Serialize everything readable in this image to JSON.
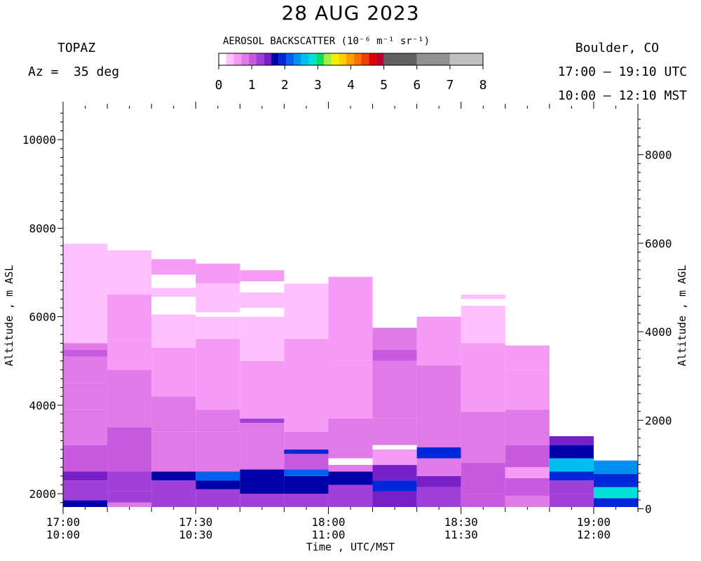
{
  "header": {
    "title": "28 AUG 2023",
    "instrument": "TOPAZ",
    "azimuth": "Az =  35 deg",
    "location": "Boulder, CO",
    "utc_range": "17:00 – 19:10 UTC",
    "mst_range": "10:00 – 12:10 MST"
  },
  "colorbar": {
    "title": "AEROSOL BACKSCATTER (10⁻⁶ m⁻¹ sr⁻¹)",
    "ticks": [
      "0",
      "1",
      "2",
      "3",
      "4",
      "5",
      "6",
      "7",
      "8"
    ],
    "colors": [
      "#ffffff",
      "#ffc0ff",
      "#f59af5",
      "#e07ae8",
      "#c85ae0",
      "#a040d8",
      "#7820c8",
      "#0000a8",
      "#0028d8",
      "#0060f0",
      "#0090f0",
      "#00c0f0",
      "#00e0d8",
      "#00e060",
      "#a0f040",
      "#f0f000",
      "#ffd000",
      "#ffa000",
      "#ff7000",
      "#f04000",
      "#e00000",
      "#b80030",
      "#606060",
      "#909090",
      "#c0c0c0"
    ]
  },
  "chart_data": {
    "type": "heatmap",
    "title": "28 AUG 2023",
    "xlabel": "Time , UTC/MST",
    "ylabel_left": "Altitude , m ASL",
    "ylabel_right": "Altitude , m AGL",
    "ylim_asl": [
      1700,
      10700
    ],
    "yticks_asl": [
      "2000",
      "4000",
      "6000",
      "8000",
      "10000"
    ],
    "yticks_agl": [
      "0",
      "2000",
      "4000",
      "6000",
      "8000"
    ],
    "agl_offset_m": 1660,
    "xlim_minutes": [
      0,
      130
    ],
    "xticks": [
      {
        "utc": "17:00",
        "mst": "10:00"
      },
      {
        "utc": "17:30",
        "mst": "10:30"
      },
      {
        "utc": "18:00",
        "mst": "11:00"
      },
      {
        "utc": "18:30",
        "mst": "11:30"
      },
      {
        "utc": "19:00",
        "mst": "12:00"
      }
    ],
    "columns": [
      {
        "start": 0,
        "end": 10,
        "segments": [
          [
            1700,
            1850,
            2.4
          ],
          [
            1850,
            2300,
            1.7
          ],
          [
            2300,
            2500,
            2.1
          ],
          [
            2500,
            3100,
            1.3
          ],
          [
            3100,
            3900,
            1.1
          ],
          [
            3900,
            4500,
            0.95
          ],
          [
            4500,
            4900,
            0.9
          ],
          [
            4900,
            5100,
            0.85
          ],
          [
            5100,
            5250,
            1.45
          ],
          [
            5250,
            5400,
            0.9
          ],
          [
            5400,
            6200,
            0.35
          ],
          [
            6200,
            7650,
            0.3
          ]
        ]
      },
      {
        "start": 10,
        "end": 20,
        "segments": [
          [
            1700,
            1800,
            0.9
          ],
          [
            1800,
            2050,
            1.65
          ],
          [
            2050,
            2500,
            1.8
          ],
          [
            2500,
            3500,
            1.2
          ],
          [
            3500,
            4100,
            1.05
          ],
          [
            4100,
            4800,
            0.85
          ],
          [
            4800,
            5500,
            0.75
          ],
          [
            5500,
            6500,
            0.5
          ],
          [
            6500,
            7500,
            0.4
          ]
        ]
      },
      {
        "start": 20,
        "end": 30,
        "segments": [
          [
            1700,
            2300,
            1.6
          ],
          [
            2300,
            2500,
            2.3
          ],
          [
            2500,
            3400,
            1.1
          ],
          [
            3400,
            4200,
            1.0
          ],
          [
            4200,
            5300,
            0.8
          ],
          [
            5300,
            6050,
            0.4
          ],
          [
            6050,
            6450,
            0.0
          ],
          [
            6450,
            6650,
            0.3
          ],
          [
            6650,
            6950,
            0.0
          ],
          [
            6950,
            7300,
            0.6
          ]
        ]
      },
      {
        "start": 30,
        "end": 40,
        "segments": [
          [
            1700,
            2100,
            1.6
          ],
          [
            2100,
            2300,
            2.3
          ],
          [
            2300,
            2500,
            3.1
          ],
          [
            2500,
            3400,
            1.1
          ],
          [
            3400,
            3900,
            1.1
          ],
          [
            3900,
            5500,
            0.75
          ],
          [
            5500,
            6000,
            0.3
          ],
          [
            6000,
            6100,
            0.0
          ],
          [
            6100,
            6750,
            0.3
          ],
          [
            6750,
            7200,
            0.55
          ]
        ]
      },
      {
        "start": 40,
        "end": 50,
        "segments": [
          [
            1700,
            2000,
            1.6
          ],
          [
            2000,
            2550,
            2.2
          ],
          [
            2550,
            3600,
            1.1
          ],
          [
            3600,
            3700,
            1.5
          ],
          [
            3700,
            5000,
            0.8
          ],
          [
            5000,
            6000,
            0.45
          ],
          [
            6000,
            6200,
            0.0
          ],
          [
            6200,
            6550,
            0.3
          ],
          [
            6550,
            6800,
            0.0
          ],
          [
            6800,
            7050,
            0.5
          ]
        ]
      },
      {
        "start": 50,
        "end": 60,
        "segments": [
          [
            1700,
            2000,
            1.7
          ],
          [
            2000,
            2400,
            2.2
          ],
          [
            2400,
            2550,
            3.1
          ],
          [
            2550,
            2900,
            1.4
          ],
          [
            2900,
            3000,
            2.8
          ],
          [
            3000,
            3400,
            1.15
          ],
          [
            3400,
            5500,
            0.8
          ],
          [
            5500,
            6750,
            0.45
          ]
        ]
      },
      {
        "start": 60,
        "end": 70,
        "segments": [
          [
            1700,
            2200,
            1.8
          ],
          [
            2200,
            2500,
            2.4
          ],
          [
            2500,
            2650,
            1.0
          ],
          [
            2650,
            2800,
            0.0
          ],
          [
            2800,
            3700,
            1.1
          ],
          [
            3700,
            5000,
            0.75
          ],
          [
            5000,
            6900,
            0.5
          ]
        ]
      },
      {
        "start": 70,
        "end": 80,
        "segments": [
          [
            1700,
            2050,
            2.1
          ],
          [
            2050,
            2300,
            2.7
          ],
          [
            2300,
            2650,
            1.9
          ],
          [
            2650,
            3000,
            0.7
          ],
          [
            3000,
            3100,
            0.0
          ],
          [
            3100,
            3700,
            1.1
          ],
          [
            3700,
            5000,
            1.1
          ],
          [
            5000,
            5250,
            1.4
          ],
          [
            5250,
            5750,
            1.0
          ]
        ]
      },
      {
        "start": 80,
        "end": 90,
        "segments": [
          [
            1700,
            2150,
            1.5
          ],
          [
            2150,
            2400,
            2.0
          ],
          [
            2400,
            2800,
            1.1
          ],
          [
            2800,
            3050,
            2.5
          ],
          [
            3050,
            3800,
            1.1
          ],
          [
            3800,
            4900,
            0.95
          ],
          [
            4900,
            6000,
            0.65
          ]
        ]
      },
      {
        "start": 90,
        "end": 100,
        "segments": [
          [
            1700,
            2000,
            1.3
          ],
          [
            2000,
            2700,
            1.4
          ],
          [
            2700,
            3000,
            1.1
          ],
          [
            3000,
            3850,
            1.0
          ],
          [
            3850,
            5400,
            0.75
          ],
          [
            5400,
            6250,
            0.4
          ],
          [
            6250,
            6400,
            0.0
          ],
          [
            6400,
            6500,
            0.2
          ]
        ]
      },
      {
        "start": 100,
        "end": 110,
        "segments": [
          [
            1700,
            1950,
            1.1
          ],
          [
            1950,
            2350,
            1.3
          ],
          [
            2350,
            2600,
            0.6
          ],
          [
            2600,
            3100,
            1.3
          ],
          [
            3100,
            3900,
            0.9
          ],
          [
            3900,
            4800,
            0.7
          ],
          [
            4800,
            5350,
            0.55
          ]
        ]
      },
      {
        "start": 110,
        "end": 120,
        "segments": [
          [
            1700,
            2000,
            1.5
          ],
          [
            2000,
            2300,
            1.8
          ],
          [
            2300,
            2500,
            2.7
          ],
          [
            2500,
            2800,
            3.5
          ],
          [
            2800,
            3100,
            2.2
          ],
          [
            3100,
            3300,
            1.9
          ]
        ]
      },
      {
        "start": 120,
        "end": 130,
        "segments": [
          [
            1700,
            1900,
            2.6
          ],
          [
            1900,
            2150,
            4.0
          ],
          [
            2150,
            2450,
            2.5
          ],
          [
            2450,
            2750,
            3.3
          ]
        ]
      }
    ]
  }
}
